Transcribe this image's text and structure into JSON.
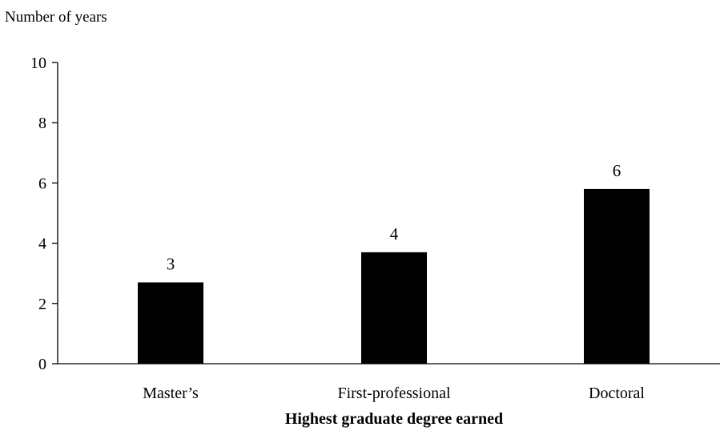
{
  "chart_data": {
    "type": "bar",
    "ylabel": "Number of years",
    "xlabel": "Highest graduate degree earned",
    "categories": [
      "Master’s",
      "First-professional",
      "Doctoral"
    ],
    "values": [
      2.7,
      3.7,
      5.8
    ],
    "data_labels": [
      "3",
      "4",
      "6"
    ],
    "ylim": [
      0,
      10
    ],
    "yticks": [
      0,
      2,
      4,
      6,
      8,
      10
    ],
    "grid": false,
    "legend": "none",
    "bar_color": "#000000"
  }
}
